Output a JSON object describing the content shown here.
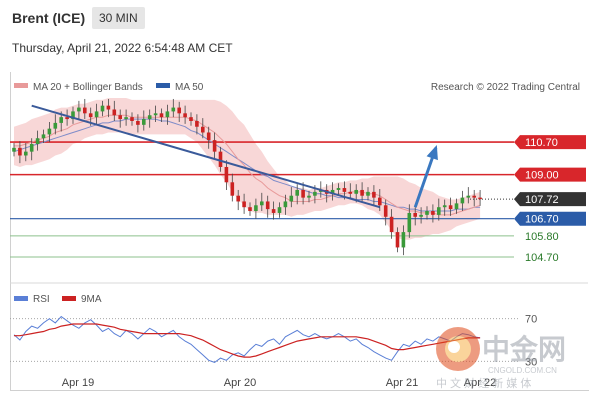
{
  "header": {
    "title": "Brent (ICE)",
    "timeframe": "30 MIN"
  },
  "timestamp": "Thursday, April 21, 2022 6:54:48 AM CET",
  "legend": {
    "ma20": "MA 20 + Bollinger Bands",
    "ma50": "MA 50",
    "credit": "Research © 2022 Trading Central",
    "rsi": "RSI",
    "ma9": "9MA"
  },
  "watermark": {
    "brand": "中金网",
    "url": "CNGOLD.COM.CN",
    "tagline": "中 文 财 经 新 媒 体"
  },
  "colors": {
    "resistance": "#d8262b",
    "support": "#2b5ca8",
    "target": "#3a78c0",
    "up": "#3a9a3a",
    "down": "#cc2222",
    "band": "#f6c9c9",
    "ma50": "#7f8cc9",
    "ma20": "#e89a9a",
    "rsi": "#5a7fd6",
    "rsi_ma": "#cc2222",
    "price_tag": "#333333"
  },
  "chart_data": [
    {
      "type": "line",
      "x_labels": [
        "Apr 19",
        "Apr 20",
        "Apr 21",
        "Apr 22"
      ],
      "ylim": [
        103.5,
        113.0
      ],
      "levels": [
        {
          "value": 110.7,
          "label": "110.70",
          "kind": "resistance"
        },
        {
          "value": 109.0,
          "label": "109.00",
          "kind": "resistance"
        },
        {
          "value": 107.72,
          "label": "107.72",
          "kind": "last"
        },
        {
          "value": 106.7,
          "label": "106.70",
          "kind": "pivot"
        },
        {
          "value": 105.8,
          "label": "105.80",
          "kind": "support"
        },
        {
          "value": 104.7,
          "label": "104.70",
          "kind": "support"
        }
      ],
      "close": [
        110.4,
        110.0,
        110.2,
        110.6,
        110.9,
        111.1,
        111.4,
        111.7,
        112.0,
        111.9,
        112.3,
        112.5,
        112.2,
        112.0,
        112.3,
        112.6,
        112.4,
        112.1,
        111.9,
        112.0,
        111.8,
        111.6,
        111.9,
        112.1,
        112.2,
        112.0,
        112.3,
        112.5,
        112.2,
        112.0,
        111.8,
        111.5,
        111.2,
        110.8,
        110.2,
        109.4,
        108.6,
        107.9,
        107.6,
        107.3,
        107.1,
        107.4,
        107.6,
        107.2,
        107.0,
        107.3,
        107.6,
        107.9,
        108.2,
        107.8,
        107.9,
        108.1,
        108.2,
        108.0,
        108.2,
        108.3,
        108.1,
        108.0,
        108.2,
        107.9,
        108.1,
        107.8,
        107.4,
        106.8,
        106.0,
        105.2,
        106.0,
        107.0,
        106.8,
        106.9,
        107.1,
        106.9,
        107.3,
        107.4,
        107.2,
        107.5,
        107.8,
        107.9,
        107.8,
        107.72
      ],
      "ma20": [
        110.5,
        110.5,
        110.6,
        110.7,
        110.8,
        110.9,
        111.0,
        111.2,
        111.3,
        111.4,
        111.6,
        111.7,
        111.8,
        111.9,
        112.0,
        112.0,
        112.1,
        112.1,
        112.1,
        112.1,
        112.0,
        112.0,
        112.0,
        112.0,
        112.0,
        112.0,
        112.0,
        112.0,
        112.0,
        112.0,
        111.9,
        111.8,
        111.6,
        111.4,
        111.2,
        110.9,
        110.6,
        110.2,
        109.8,
        109.5,
        109.1,
        108.8,
        108.6,
        108.3,
        108.1,
        107.9,
        107.8,
        107.6,
        107.6,
        107.6,
        107.6,
        107.7,
        107.7,
        107.8,
        107.9,
        108.0,
        108.0,
        108.1,
        108.1,
        108.1,
        108.0,
        108.0,
        107.9,
        107.7,
        107.5,
        107.3,
        107.2,
        107.1,
        107.1,
        107.0,
        107.0,
        107.0,
        106.9,
        106.9,
        106.9,
        107.0,
        107.1,
        107.2,
        107.3,
        107.4
      ],
      "ma50": [
        110.2,
        110.3,
        110.4,
        110.5,
        110.6,
        110.7,
        110.8,
        110.9,
        111.0,
        111.1,
        111.2,
        111.3,
        111.4,
        111.5,
        111.6,
        111.7,
        111.7,
        111.8,
        111.8,
        111.9,
        111.9,
        111.9,
        111.9,
        111.9,
        111.9,
        111.8,
        111.8,
        111.7,
        111.6,
        111.5,
        111.3,
        111.2,
        111.0,
        110.8,
        110.6,
        110.4,
        110.2,
        110.0,
        109.8,
        109.6,
        109.4,
        109.2,
        109.0,
        108.9,
        108.7,
        108.6,
        108.5,
        108.4,
        108.3,
        108.2,
        108.1,
        108.0,
        108.0,
        107.9,
        107.9,
        107.8,
        107.8,
        107.8,
        107.7,
        107.7,
        107.7,
        107.6,
        107.6,
        107.5,
        107.4,
        107.3,
        107.3,
        107.2,
        107.2,
        107.1,
        107.1,
        107.1,
        107.1,
        107.1,
        107.1,
        107.2,
        107.2,
        107.2,
        107.3,
        107.3
      ],
      "band_width": [
        1.0,
        1.1,
        1.1,
        1.2,
        1.2,
        1.2,
        1.2,
        1.2,
        1.2,
        1.1,
        1.0,
        1.0,
        0.9,
        0.9,
        0.9,
        0.9,
        0.9,
        0.9,
        0.9,
        0.9,
        0.9,
        0.9,
        0.9,
        0.9,
        0.9,
        0.9,
        0.9,
        0.9,
        0.9,
        0.9,
        1.0,
        1.1,
        1.3,
        1.5,
        1.7,
        1.9,
        2.0,
        2.1,
        2.1,
        2.1,
        2.0,
        1.8,
        1.6,
        1.4,
        1.2,
        1.0,
        0.9,
        0.8,
        0.7,
        0.7,
        0.6,
        0.6,
        0.6,
        0.6,
        0.6,
        0.6,
        0.6,
        0.6,
        0.6,
        0.7,
        0.8,
        0.9,
        1.0,
        1.2,
        1.4,
        1.6,
        1.6,
        1.5,
        1.4,
        1.3,
        1.2,
        1.1,
        1.0,
        0.9,
        0.8,
        0.7,
        0.7,
        0.7,
        0.7,
        0.7
      ],
      "trendline": [
        [
          3,
          112.6
        ],
        [
          62,
          107.3
        ]
      ],
      "target_arrow": [
        [
          68,
          107.3
        ],
        [
          71.5,
          110.4
        ]
      ]
    },
    {
      "type": "line",
      "name": "RSI",
      "ylim": [
        20,
        80
      ],
      "levels": [
        {
          "value": 70,
          "label": "70"
        },
        {
          "value": 30,
          "label": "30"
        }
      ],
      "rsi": [
        55,
        50,
        58,
        63,
        61,
        66,
        70,
        66,
        72,
        68,
        64,
        61,
        66,
        69,
        64,
        58,
        61,
        56,
        53,
        59,
        56,
        51,
        56,
        61,
        58,
        53,
        56,
        59,
        53,
        49,
        46,
        41,
        36,
        31,
        29,
        33,
        31,
        36,
        38,
        35,
        41,
        46,
        44,
        49,
        51,
        46,
        53,
        56,
        59,
        55,
        53,
        56,
        53,
        51,
        53,
        56,
        53,
        49,
        51,
        46,
        43,
        39,
        36,
        33,
        31,
        39,
        46,
        44,
        49,
        46,
        51,
        49,
        53,
        51,
        49,
        53,
        56,
        55,
        53,
        52
      ],
      "rsi_ma": [
        54,
        54,
        55,
        56,
        57,
        58,
        60,
        61,
        63,
        64,
        65,
        65,
        65,
        65,
        65,
        64,
        63,
        62,
        60,
        59,
        58,
        57,
        56,
        56,
        56,
        56,
        56,
        56,
        56,
        55,
        54,
        52,
        50,
        47,
        44,
        41,
        39,
        37,
        35,
        34,
        34,
        35,
        37,
        39,
        41,
        43,
        45,
        47,
        49,
        50,
        51,
        52,
        53,
        53,
        53,
        53,
        53,
        53,
        53,
        52,
        51,
        49,
        47,
        45,
        42,
        41,
        41,
        42,
        43,
        44,
        45,
        46,
        47,
        48,
        49,
        50,
        51,
        52,
        52,
        52
      ]
    }
  ]
}
